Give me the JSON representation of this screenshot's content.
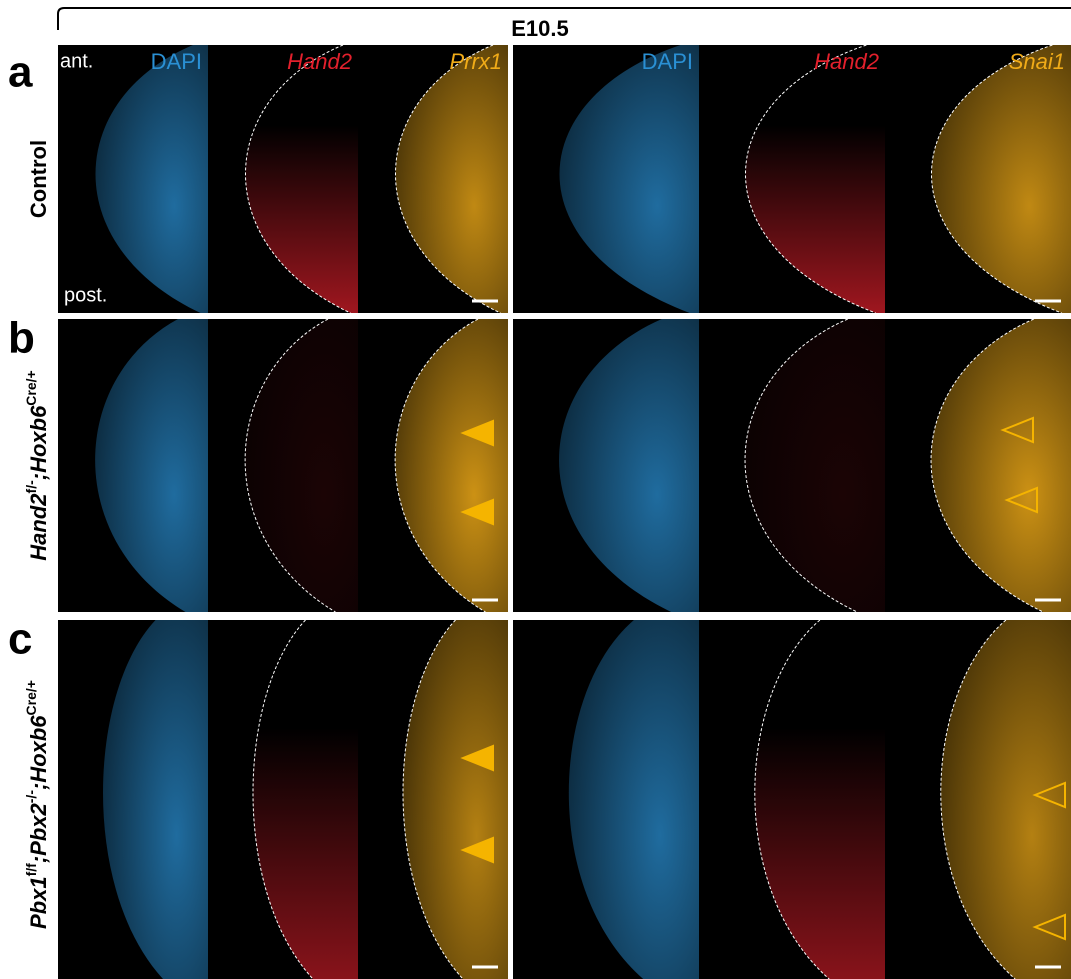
{
  "figure": {
    "stage": "E10.5",
    "orientation": {
      "anterior": "ant.",
      "posterior": "post."
    },
    "left_channels": [
      "DAPI",
      "Hand2",
      "Prrx1"
    ],
    "right_channels": [
      "DAPI",
      "Hand2",
      "Snai1"
    ],
    "rows": [
      {
        "letter": "a",
        "genotype": [
          {
            "text": "Control"
          }
        ]
      },
      {
        "letter": "b",
        "genotype": [
          {
            "text": "Hand2",
            "sup": "f/-"
          },
          {
            "text": ";Hoxb6",
            "sup": "Cre/+"
          }
        ]
      },
      {
        "letter": "c",
        "genotype": [
          {
            "text": "Pbx1",
            "sup": "f/f"
          },
          {
            "text": ";Pbx2",
            "sup": "-/-"
          },
          {
            "text": ";Hoxb6",
            "sup": "Cre/+"
          }
        ]
      }
    ]
  }
}
